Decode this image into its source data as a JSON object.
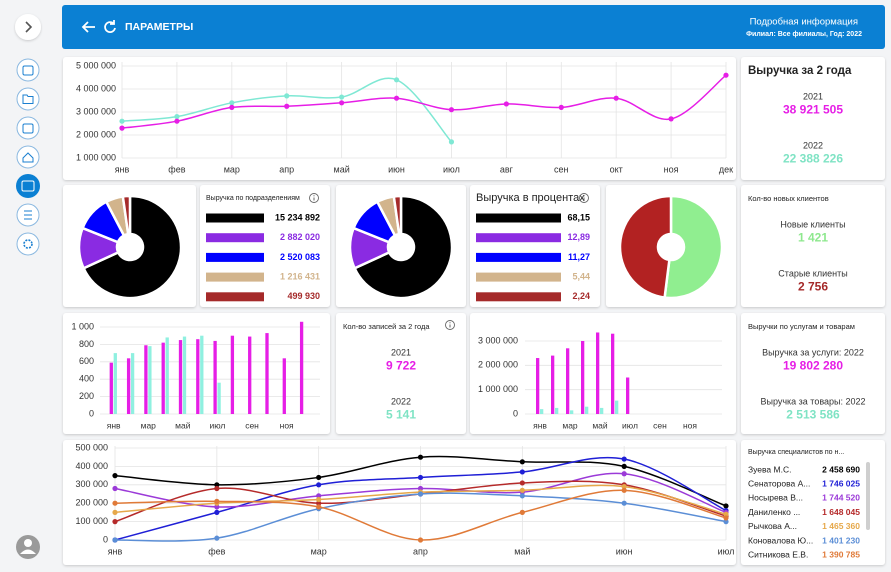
{
  "header": {
    "title": "ПАРАМЕТРЫ",
    "info_title": "Подробная информация",
    "info_subtitle": "Филиал: Все филиалы, Год: 2022"
  },
  "cards": [
    {
      "title": "Выручка за 2 года",
      "items": [
        {
          "label": "2021",
          "value": "38 921 505",
          "color": "#e61ee6"
        },
        {
          "label": "2022",
          "value": "22 388 226",
          "color": "#7fe3c4"
        }
      ]
    },
    {
      "title": "Кол-во новых клиентов",
      "items": [
        {
          "label": "Новые клиенты",
          "value": "1 421",
          "color": "#8ee88e"
        },
        {
          "label": "Старые клиенты",
          "value": "2 756",
          "color": "#a52a2a"
        }
      ]
    },
    {
      "title": "Кол-во записей за 2 года",
      "items": [
        {
          "label": "2021",
          "value": "9 722",
          "color": "#e61ee6"
        },
        {
          "label": "2022",
          "value": "5 141",
          "color": "#7fe3c4"
        }
      ]
    },
    {
      "title": "Выручки по услугам и товарам",
      "items": [
        {
          "label": "Выручка за услуги: 2022",
          "value": "19 802 280",
          "color": "#e61ee6"
        },
        {
          "label": "Выручка за товары: 2022",
          "value": "2 513 586",
          "color": "#7fe3c4"
        }
      ]
    }
  ],
  "specialists": {
    "title": "Выручка специалистов по н...",
    "totals": [
      "2 458 690",
      "1 746 025",
      "1 744 520",
      "1 648 045",
      "1 465 360",
      "1 401 230",
      "1 390 785"
    ]
  },
  "chart_data": [
    {
      "type": "line",
      "categories": [
        "янв",
        "фев",
        "мар",
        "апр",
        "май",
        "июн",
        "июл",
        "авг",
        "сен",
        "окт",
        "ноя",
        "дек"
      ],
      "series": [
        {
          "color": "#7fe8d4",
          "values": [
            2600000,
            2800000,
            3400000,
            3700000,
            3650000,
            4400000,
            1700000,
            null,
            null,
            null,
            null,
            null
          ]
        },
        {
          "color": "#e61ee6",
          "values": [
            2300000,
            2600000,
            3200000,
            3250000,
            3400000,
            3600000,
            3100000,
            3350000,
            3200000,
            3600000,
            2700000,
            4600000
          ]
        }
      ],
      "ylim": [
        1000000,
        5000000
      ],
      "yticks": [
        {
          "value": 1000000,
          "label": "1 000 000"
        },
        {
          "value": 2000000,
          "label": "2 000 000"
        },
        {
          "value": 3000000,
          "label": "3 000 000"
        },
        {
          "value": 4000000,
          "label": "4 000 000"
        },
        {
          "value": 5000000,
          "label": "5 000 000"
        }
      ],
      "grid": true
    },
    {
      "type": "pie",
      "title": "Выручка по подразделениям",
      "values": [
        15234892,
        2882020,
        2520083,
        1216431,
        499930
      ],
      "value_labels": [
        "15 234 892",
        "2 882 020",
        "2 520 083",
        "1 216 431",
        "499 930"
      ],
      "colors": [
        "#000000",
        "#8a2be2",
        "#0000ff",
        "#d2b48c",
        "#a52a2a"
      ]
    },
    {
      "type": "pie",
      "title": "Выручка в процентах",
      "values": [
        68.15,
        12.89,
        11.27,
        5.44,
        2.24
      ],
      "value_labels": [
        "68,15",
        "12,89",
        "11,27",
        "5,44",
        "2,24"
      ],
      "colors": [
        "#000000",
        "#8a2be2",
        "#0000ff",
        "#d2b48c",
        "#a52a2a"
      ]
    },
    {
      "type": "pie",
      "values": [
        52,
        48
      ],
      "colors": [
        "#90ee90",
        "#b22222"
      ]
    },
    {
      "type": "bar",
      "categories": [
        "янв",
        null,
        "мар",
        null,
        "май",
        null,
        "июл",
        null,
        "сен",
        null,
        "ноя",
        null
      ],
      "series": [
        {
          "color": "#e61ee6",
          "values": [
            590,
            640,
            790,
            820,
            850,
            860,
            840,
            900,
            890,
            930,
            640,
            1060
          ]
        },
        {
          "color": "#8ff0e0",
          "values": [
            700,
            700,
            780,
            880,
            890,
            900,
            360,
            null,
            null,
            null,
            null,
            null
          ]
        }
      ],
      "ylim": [
        0,
        1080
      ],
      "yticks": [
        0,
        200,
        400,
        600,
        800,
        {
          "value": 1000,
          "label": "1 000"
        }
      ],
      "grid": true
    },
    {
      "type": "bar",
      "categories": [
        "янв",
        null,
        "мар",
        null,
        "май",
        null,
        "июл",
        null,
        "сен",
        null,
        "ноя",
        null
      ],
      "series": [
        {
          "color": "#e61ee6",
          "values": [
            2300000,
            2400000,
            2700000,
            3000000,
            3350000,
            3300000,
            1500000,
            null,
            null,
            null,
            null,
            null
          ]
        },
        {
          "color": "#8ff0e0",
          "values": [
            200000,
            250000,
            150000,
            300000,
            250000,
            550000,
            null,
            null,
            null,
            null,
            null,
            null
          ]
        }
      ],
      "ylim": [
        0,
        3500000
      ],
      "yticks": [
        0,
        {
          "value": 1000000,
          "label": "1 000 000"
        },
        {
          "value": 2000000,
          "label": "2 000 000"
        },
        {
          "value": 3000000,
          "label": "3 000 000"
        }
      ],
      "grid": true
    },
    {
      "type": "line",
      "categories": [
        "янв",
        "фев",
        "мар",
        "апр",
        "май",
        "июн",
        "июл"
      ],
      "series": [
        {
          "name": "Зуева М.С.",
          "color": "#000000",
          "values": [
            350000,
            300000,
            340000,
            450000,
            425000,
            400000,
            185000
          ]
        },
        {
          "name": "Сенаторова А...",
          "color": "#1f1fd6",
          "values": [
            0,
            150000,
            300000,
            340000,
            370000,
            440000,
            160000
          ]
        },
        {
          "name": "Носырева В...",
          "color": "#9b3ad8",
          "values": [
            280000,
            180000,
            240000,
            280000,
            260000,
            360000,
            150000
          ]
        },
        {
          "name": "Даниленко ...",
          "color": "#b52a2a",
          "values": [
            100000,
            280000,
            200000,
            250000,
            310000,
            300000,
            130000
          ]
        },
        {
          "name": "Рычкова А...",
          "color": "#e6a84a",
          "values": [
            150000,
            200000,
            220000,
            260000,
            270000,
            290000,
            140000
          ]
        },
        {
          "name": "Коновалова Ю...",
          "color": "#5b8ed6",
          "values": [
            0,
            10000,
            170000,
            250000,
            240000,
            200000,
            100000
          ]
        },
        {
          "name": "Ситникова Е.В.",
          "color": "#e07a38",
          "values": [
            200000,
            210000,
            180000,
            0,
            150000,
            270000,
            120000
          ]
        }
      ],
      "ylim": [
        0,
        500000
      ],
      "yticks": [
        0,
        {
          "value": 100000,
          "label": "100 000"
        },
        {
          "value": 200000,
          "label": "200 000"
        },
        {
          "value": 300000,
          "label": "300 000"
        },
        {
          "value": 400000,
          "label": "400 000"
        },
        {
          "value": 500000,
          "label": "500 000"
        }
      ],
      "grid": true
    }
  ]
}
